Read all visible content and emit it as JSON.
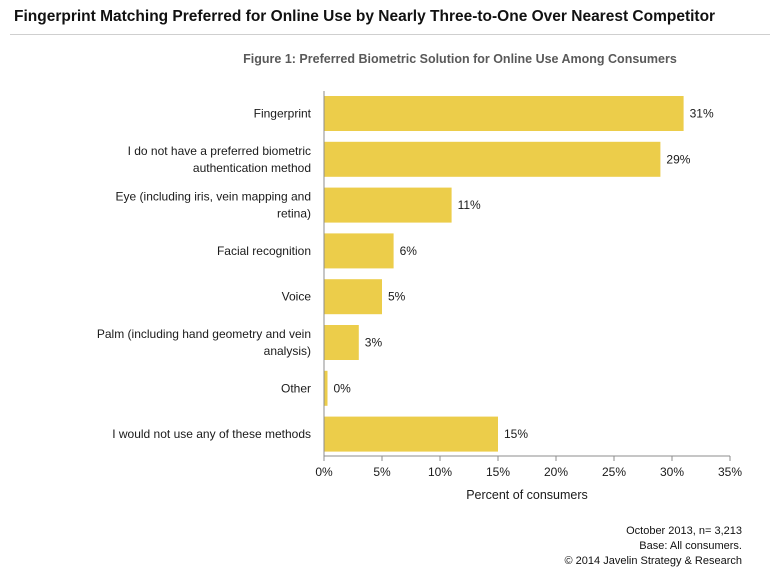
{
  "header": {
    "headline": "Fingerprint Matching Preferred for Online Use by Nearly Three-to-One Over Nearest Competitor"
  },
  "chart_data": {
    "type": "bar",
    "orientation": "horizontal",
    "title": "Figure 1: Preferred Biometric Solution for Online Use Among Consumers",
    "xlabel": "Percent of consumers",
    "ylabel": "",
    "xlim": [
      0,
      35
    ],
    "x_ticks": [
      "0%",
      "5%",
      "10%",
      "15%",
      "20%",
      "25%",
      "30%",
      "35%"
    ],
    "grid": false,
    "bar_color": "#eccd4a",
    "categories": [
      [
        "Fingerprint"
      ],
      [
        "I do not have a preferred biometric",
        "authentication method"
      ],
      [
        "Eye (including iris, vein mapping and",
        "retina)"
      ],
      [
        "Facial recognition"
      ],
      [
        "Voice"
      ],
      [
        "Palm (including hand geometry and vein",
        "analysis)"
      ],
      [
        "Other"
      ],
      [
        "I would not use any of these methods"
      ]
    ],
    "values": [
      31,
      29,
      11,
      6,
      5,
      3,
      0,
      15
    ],
    "value_labels": [
      "31%",
      "29%",
      "11%",
      "6%",
      "5%",
      "3%",
      "0%",
      "15%"
    ]
  },
  "footer": {
    "lines": [
      "October 2013, n= 3,213",
      "Base: All consumers.",
      "© 2014 Javelin Strategy & Research"
    ]
  }
}
